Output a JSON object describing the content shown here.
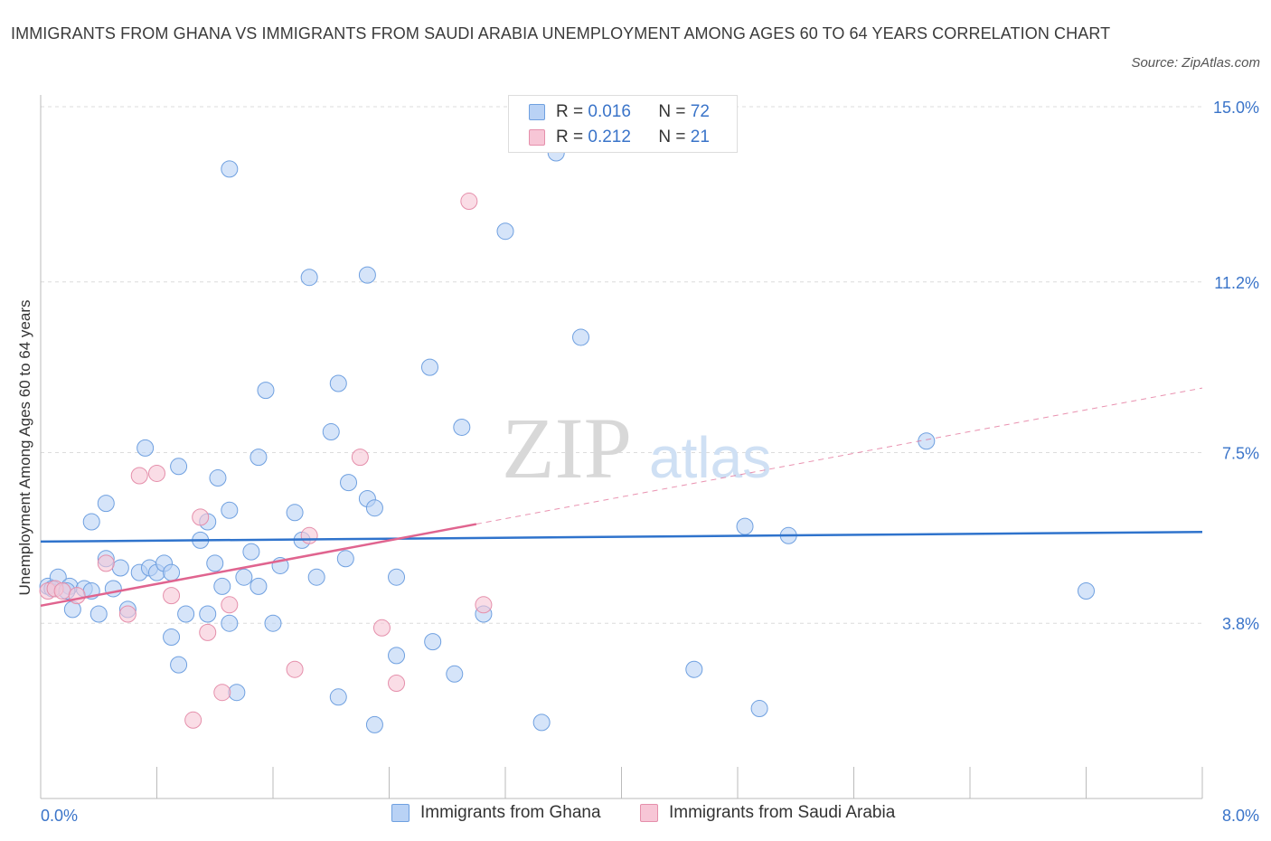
{
  "title": "IMMIGRANTS FROM GHANA VS IMMIGRANTS FROM SAUDI ARABIA UNEMPLOYMENT AMONG AGES 60 TO 64 YEARS CORRELATION CHART",
  "source": "Source: ZipAtlas.com",
  "watermark": {
    "zip": "ZIP",
    "atlas": "atlas"
  },
  "legend": {
    "r_label": "R =",
    "n_label": "N =",
    "series1": {
      "r": "0.016",
      "n": "72"
    },
    "series2": {
      "r": "0.212",
      "n": "21"
    }
  },
  "chart_data": {
    "type": "scatter",
    "xlabel": "",
    "ylabel": "Unemployment Among Ages 60 to 64 years",
    "xlim": [
      0,
      8.0
    ],
    "ylim": [
      0,
      15.0
    ],
    "x_tick_labels": [
      "0.0%",
      "8.0%"
    ],
    "y_tick_values": [
      3.8,
      7.5,
      11.2,
      15.0
    ],
    "y_tick_labels": [
      "3.8%",
      "7.5%",
      "11.2%",
      "15.0%"
    ],
    "grid": true,
    "legend_position": "top-center",
    "series": [
      {
        "name": "Immigrants from Ghana",
        "color": "#6fa0e0",
        "fill": "#b9d2f5",
        "trend_color": "#2f73cc",
        "trend": {
          "x0": 0.0,
          "y0": 5.57,
          "x1": 8.0,
          "y1": 5.78,
          "dash_from": null
        },
        "points": [
          [
            0.05,
            4.6
          ],
          [
            0.12,
            4.8
          ],
          [
            0.08,
            4.55
          ],
          [
            0.2,
            4.6
          ],
          [
            0.18,
            4.5
          ],
          [
            0.22,
            4.1
          ],
          [
            0.3,
            4.55
          ],
          [
            0.35,
            4.5
          ],
          [
            0.4,
            4.0
          ],
          [
            0.45,
            5.2
          ],
          [
            0.5,
            4.55
          ],
          [
            0.55,
            5.0
          ],
          [
            0.6,
            4.1
          ],
          [
            0.68,
            4.9
          ],
          [
            0.75,
            5.0
          ],
          [
            0.8,
            4.9
          ],
          [
            0.85,
            5.1
          ],
          [
            0.9,
            3.5
          ],
          [
            0.95,
            2.9
          ],
          [
            1.0,
            4.0
          ],
          [
            1.1,
            5.6
          ],
          [
            1.2,
            5.1
          ],
          [
            1.25,
            4.6
          ],
          [
            1.3,
            3.8
          ],
          [
            1.35,
            2.3
          ],
          [
            1.4,
            4.8
          ],
          [
            1.45,
            5.35
          ],
          [
            1.5,
            4.6
          ],
          [
            1.65,
            5.05
          ],
          [
            1.9,
            4.8
          ],
          [
            1.8,
            5.6
          ],
          [
            2.05,
            2.2
          ],
          [
            2.1,
            5.2
          ],
          [
            2.3,
            1.6
          ],
          [
            2.25,
            6.5
          ],
          [
            2.45,
            4.8
          ],
          [
            2.7,
            3.4
          ],
          [
            2.85,
            2.7
          ],
          [
            3.05,
            4.0
          ],
          [
            3.45,
            1.65
          ],
          [
            0.35,
            6.0
          ],
          [
            0.45,
            6.4
          ],
          [
            0.72,
            7.6
          ],
          [
            0.95,
            7.2
          ],
          [
            1.15,
            6.0
          ],
          [
            1.22,
            6.95
          ],
          [
            1.3,
            13.65
          ],
          [
            1.5,
            7.4
          ],
          [
            1.55,
            8.85
          ],
          [
            1.75,
            6.2
          ],
          [
            1.85,
            11.3
          ],
          [
            2.0,
            7.95
          ],
          [
            2.05,
            9.0
          ],
          [
            2.12,
            6.85
          ],
          [
            2.25,
            11.35
          ],
          [
            2.3,
            6.3
          ],
          [
            2.68,
            9.35
          ],
          [
            2.9,
            8.05
          ],
          [
            3.2,
            12.3
          ],
          [
            3.55,
            14.0
          ],
          [
            3.72,
            10.0
          ],
          [
            4.5,
            2.8
          ],
          [
            4.85,
            5.9
          ],
          [
            4.95,
            1.95
          ],
          [
            6.1,
            7.75
          ],
          [
            5.15,
            5.7
          ],
          [
            1.3,
            6.25
          ],
          [
            0.9,
            4.9
          ],
          [
            1.15,
            4.0
          ],
          [
            2.45,
            3.1
          ],
          [
            7.2,
            4.5
          ],
          [
            1.6,
            3.8
          ]
        ]
      },
      {
        "name": "Immigrants from Saudi Arabia",
        "color": "#e58fab",
        "fill": "#f7c6d6",
        "trend_color": "#e0648f",
        "trend": {
          "x0": 0.0,
          "y0": 4.18,
          "x1": 8.0,
          "y1": 8.9,
          "dash_from": 3.0
        },
        "points": [
          [
            0.05,
            4.5
          ],
          [
            0.1,
            4.55
          ],
          [
            0.15,
            4.5
          ],
          [
            0.25,
            4.4
          ],
          [
            0.45,
            5.1
          ],
          [
            0.6,
            4.0
          ],
          [
            0.68,
            7.0
          ],
          [
            0.8,
            7.05
          ],
          [
            0.9,
            4.4
          ],
          [
            1.05,
            1.7
          ],
          [
            1.1,
            6.1
          ],
          [
            1.15,
            3.6
          ],
          [
            1.3,
            4.2
          ],
          [
            1.25,
            2.3
          ],
          [
            1.75,
            2.8
          ],
          [
            1.85,
            5.7
          ],
          [
            2.2,
            7.4
          ],
          [
            2.35,
            3.7
          ],
          [
            2.95,
            12.95
          ],
          [
            3.05,
            4.2
          ],
          [
            2.45,
            2.5
          ]
        ]
      }
    ]
  },
  "bottom_legend": {
    "series1": "Immigrants from Ghana",
    "series2": "Immigrants from Saudi Arabia"
  }
}
